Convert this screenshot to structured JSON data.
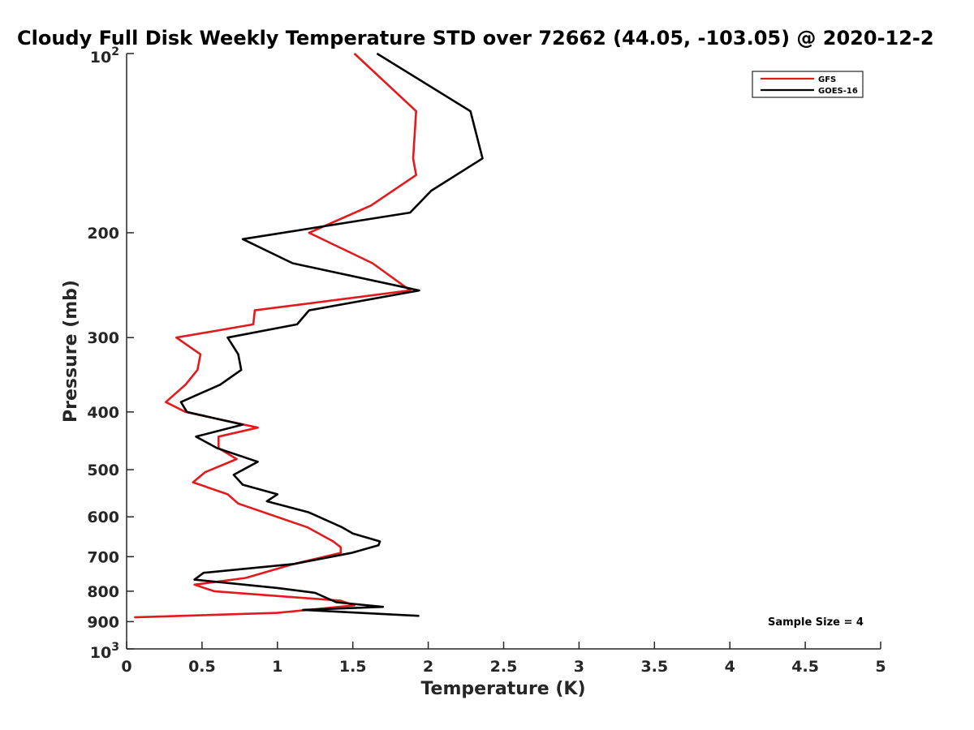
{
  "chart_data": {
    "type": "line",
    "title": "Cloudy Full Disk Weekly Temperature STD over 72662 (44.05, -103.05) @ 2020-12-2",
    "xlabel": "Temperature (K)",
    "ylabel": "Pressure (mb)",
    "xlim": [
      0,
      5
    ],
    "ylim": [
      100,
      1000
    ],
    "y_scale": "log",
    "y_reversed": true,
    "x_ticks": [
      "0",
      "0.5",
      "1",
      "1.5",
      "2",
      "2.5",
      "3",
      "3.5",
      "4",
      "4.5",
      "5"
    ],
    "y_ticks": [
      {
        "value": 100,
        "base": "10",
        "exp": "2"
      },
      {
        "value": 200,
        "label": "200"
      },
      {
        "value": 300,
        "label": "300"
      },
      {
        "value": 400,
        "label": "400"
      },
      {
        "value": 500,
        "label": "500"
      },
      {
        "value": 600,
        "label": "600"
      },
      {
        "value": 700,
        "label": "700"
      },
      {
        "value": 800,
        "label": "800"
      },
      {
        "value": 900,
        "label": "900"
      },
      {
        "value": 1000,
        "base": "10",
        "exp": "3"
      }
    ],
    "grid": false,
    "legend_position": "top-right",
    "annotation": "Sample Size = 4",
    "series": [
      {
        "name": "GFS",
        "color": "#e31a1c",
        "points": [
          [
            1.51,
            100
          ],
          [
            1.92,
            125
          ],
          [
            1.9,
            150
          ],
          [
            1.92,
            160
          ],
          [
            1.62,
            180
          ],
          [
            1.21,
            200
          ],
          [
            1.63,
            225
          ],
          [
            1.88,
            250
          ],
          [
            0.85,
            270
          ],
          [
            0.84,
            285
          ],
          [
            0.33,
            300
          ],
          [
            0.49,
            320
          ],
          [
            0.47,
            340
          ],
          [
            0.39,
            360
          ],
          [
            0.26,
            385
          ],
          [
            0.39,
            400
          ],
          [
            0.87,
            425
          ],
          [
            0.61,
            440
          ],
          [
            0.61,
            460
          ],
          [
            0.73,
            480
          ],
          [
            0.52,
            505
          ],
          [
            0.44,
            525
          ],
          [
            0.67,
            550
          ],
          [
            0.74,
            570
          ],
          [
            1.2,
            625
          ],
          [
            1.37,
            660
          ],
          [
            1.42,
            675
          ],
          [
            1.42,
            690
          ],
          [
            1.11,
            720
          ],
          [
            0.79,
            760
          ],
          [
            0.45,
            780
          ],
          [
            0.58,
            800
          ],
          [
            1.42,
            830
          ],
          [
            1.51,
            845
          ],
          [
            1.0,
            870
          ],
          [
            0.05,
            885
          ]
        ]
      },
      {
        "name": "GOES-16",
        "color": "#000000",
        "points": [
          [
            1.66,
            100
          ],
          [
            2.28,
            125
          ],
          [
            2.36,
            150
          ],
          [
            2.02,
            170
          ],
          [
            1.88,
            185
          ],
          [
            0.77,
            205
          ],
          [
            1.1,
            225
          ],
          [
            1.94,
            250
          ],
          [
            1.21,
            270
          ],
          [
            1.13,
            285
          ],
          [
            0.67,
            300
          ],
          [
            0.74,
            320
          ],
          [
            0.76,
            340
          ],
          [
            0.62,
            360
          ],
          [
            0.36,
            385
          ],
          [
            0.4,
            400
          ],
          [
            0.77,
            420
          ],
          [
            0.46,
            440
          ],
          [
            0.6,
            460
          ],
          [
            0.87,
            485
          ],
          [
            0.71,
            510
          ],
          [
            0.77,
            530
          ],
          [
            1.0,
            550
          ],
          [
            0.93,
            565
          ],
          [
            1.21,
            590
          ],
          [
            1.43,
            625
          ],
          [
            1.5,
            640
          ],
          [
            1.68,
            660
          ],
          [
            1.67,
            670
          ],
          [
            1.49,
            690
          ],
          [
            1.11,
            720
          ],
          [
            0.51,
            745
          ],
          [
            0.45,
            765
          ],
          [
            1.0,
            790
          ],
          [
            1.25,
            805
          ],
          [
            1.39,
            835
          ],
          [
            1.7,
            850
          ],
          [
            1.17,
            860
          ],
          [
            1.94,
            880
          ]
        ]
      }
    ]
  }
}
